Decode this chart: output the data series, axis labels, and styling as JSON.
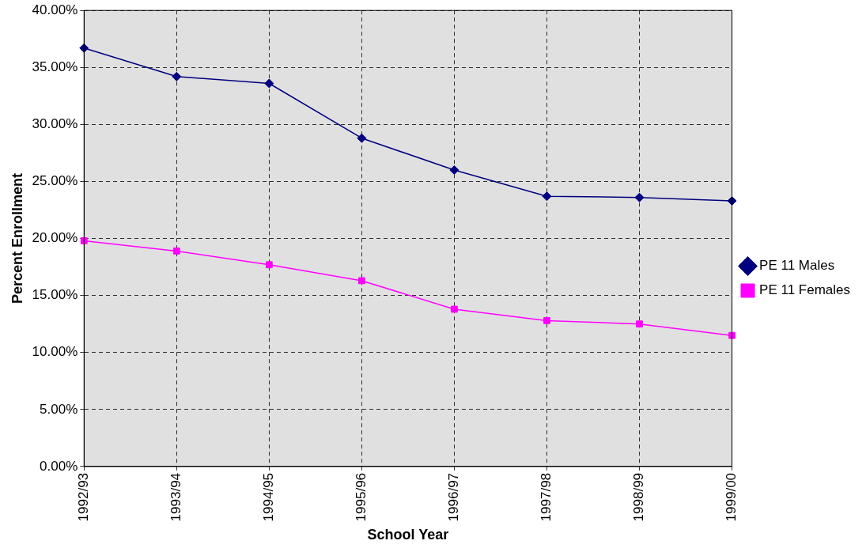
{
  "chart_data": {
    "type": "line",
    "xlabel": "School Year",
    "ylabel": "Percent Enrollment",
    "categories": [
      "1992/93",
      "1993/94",
      "1994/95",
      "1995/96",
      "1996/97",
      "1997/98",
      "1998/99",
      "1999/00"
    ],
    "series": [
      {
        "name": "PE 11 Males",
        "color": "#000080",
        "marker": "diamond",
        "values": [
          36.7,
          34.2,
          33.6,
          28.8,
          26.0,
          23.7,
          23.6,
          23.3
        ]
      },
      {
        "name": "PE 11 Females",
        "color": "#ff00ff",
        "marker": "square",
        "values": [
          19.8,
          18.9,
          17.7,
          16.3,
          13.8,
          12.8,
          12.5,
          11.5
        ]
      }
    ],
    "ylim": [
      0,
      40
    ],
    "yticks": [
      {
        "value": 0,
        "label": "0.00%"
      },
      {
        "value": 5,
        "label": "5.00%"
      },
      {
        "value": 10,
        "label": "10.00%"
      },
      {
        "value": 15,
        "label": "15.00%"
      },
      {
        "value": 20,
        "label": "20.00%"
      },
      {
        "value": 25,
        "label": "25.00%"
      },
      {
        "value": 30,
        "label": "30.00%"
      },
      {
        "value": 35,
        "label": "35.00%"
      },
      {
        "value": 40,
        "label": "40.00%"
      }
    ],
    "grid": true,
    "legend": "right",
    "line_style": "solid"
  }
}
